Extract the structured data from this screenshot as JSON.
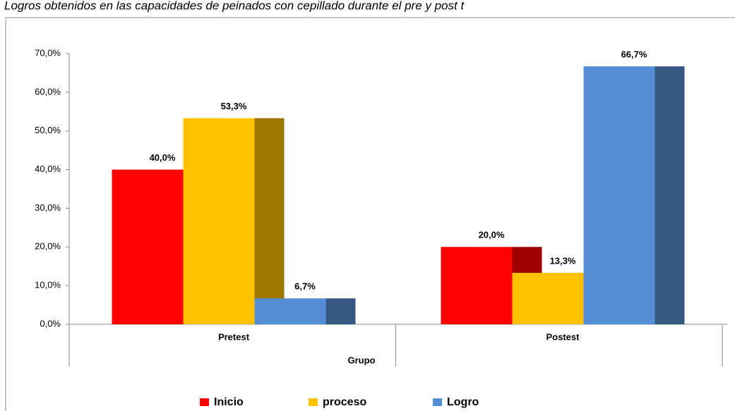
{
  "chart_data": {
    "type": "bar",
    "title": "Logros obtenidos en las capacidades de peinados con cepillado durante el pre y post t",
    "x_label": "Grupo",
    "categories": [
      "Pretest",
      "Postest"
    ],
    "series": [
      {
        "name": "Inicio",
        "color": "#ff0000",
        "values": [
          40.0,
          20.0
        ],
        "value_labels": [
          "40,0%",
          "20,0%"
        ]
      },
      {
        "name": "proceso",
        "color": "#ffc000",
        "values": [
          53.3,
          13.3
        ],
        "value_labels": [
          "53,3%",
          "13,3%"
        ]
      },
      {
        "name": "Logro",
        "color": "#558ed5",
        "values": [
          6.7,
          66.7
        ],
        "value_labels": [
          "6,7%",
          "66,7%"
        ]
      }
    ],
    "ylim": [
      0,
      70
    ],
    "yticks": [
      {
        "value": 0,
        "label": "0,0%"
      },
      {
        "value": 10,
        "label": "10,0%"
      },
      {
        "value": 20,
        "label": "20,0%"
      },
      {
        "value": 30,
        "label": "30,0%"
      },
      {
        "value": 40,
        "label": "40,0%"
      },
      {
        "value": 50,
        "label": "50,0%"
      },
      {
        "value": 60,
        "label": "60,0%"
      },
      {
        "value": 70,
        "label": "70,0%"
      }
    ],
    "legend": "bottom"
  }
}
